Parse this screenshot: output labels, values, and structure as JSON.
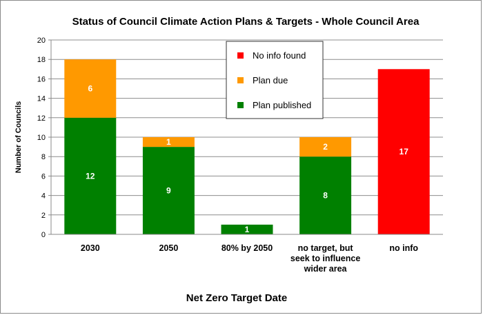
{
  "chart_data": {
    "type": "bar",
    "stacked": true,
    "title": "Status of Council Climate Action Plans & Targets - Whole Council Area",
    "xlabel": "Net Zero Target Date",
    "ylabel": "Number of Councils",
    "ylim": [
      0,
      20
    ],
    "ytick_step": 2,
    "grid": true,
    "legend_position": "top-right",
    "categories": [
      [
        "2030"
      ],
      [
        "2050"
      ],
      [
        "80% by 2050"
      ],
      [
        "no target, but",
        "seek to influence",
        "wider area"
      ],
      [
        "no info"
      ]
    ],
    "series": [
      {
        "name": "Plan published",
        "color": "#008000",
        "label_color": "#ffffff",
        "values": [
          12,
          9,
          1,
          8,
          0
        ]
      },
      {
        "name": "Plan due",
        "color": "#ff9900",
        "label_color": "#ffffff",
        "values": [
          6,
          1,
          0,
          2,
          0
        ]
      },
      {
        "name": "No info found",
        "color": "#ff0000",
        "label_color": "#ffffff",
        "values": [
          0,
          0,
          0,
          0,
          17
        ]
      }
    ],
    "outside_label_color": "#008000",
    "legend_order": [
      "No info found",
      "Plan due",
      "Plan published"
    ]
  }
}
